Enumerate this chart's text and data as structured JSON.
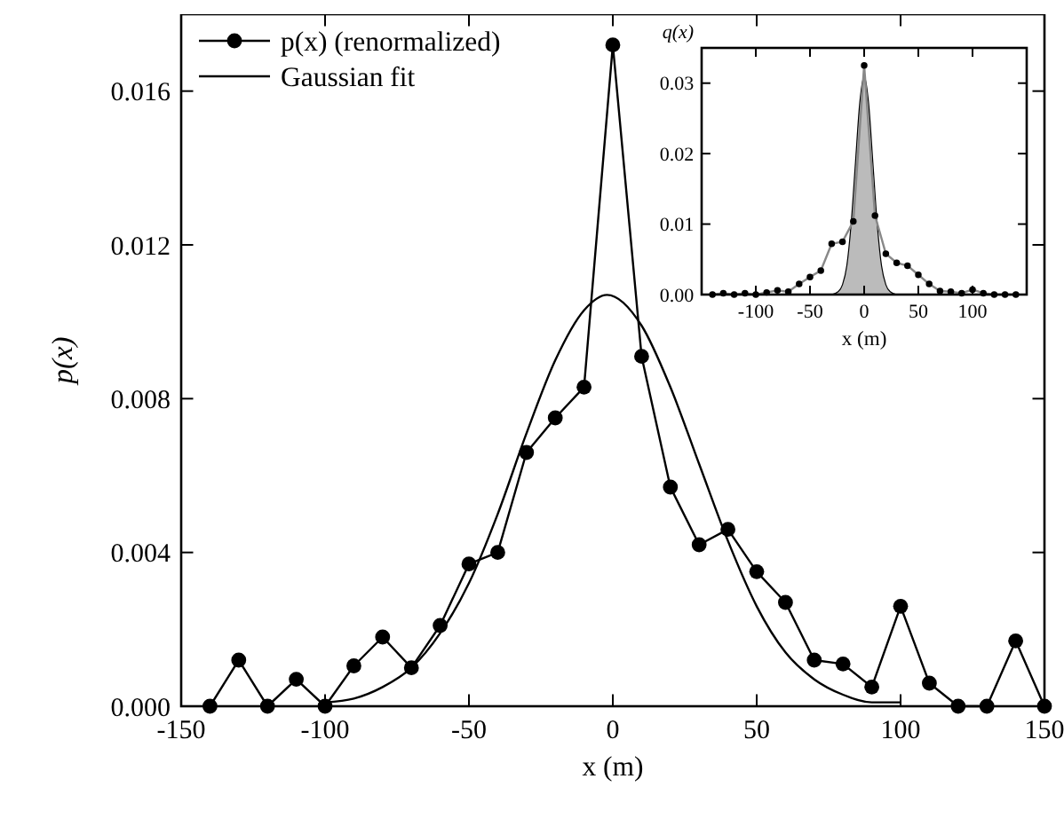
{
  "chart_data": [
    {
      "type": "line",
      "xlabel": "x (m)",
      "ylabel": "p(x)",
      "xlim": [
        -150,
        150
      ],
      "ylim": [
        0,
        0.018
      ],
      "xticks": [
        -150,
        -100,
        -50,
        0,
        50,
        100,
        150
      ],
      "yticks": [
        {
          "value": 0,
          "label": "0.000"
        },
        {
          "value": 0.004,
          "label": "0.004"
        },
        {
          "value": 0.008,
          "label": "0.008"
        },
        {
          "value": 0.012,
          "label": "0.012"
        },
        {
          "value": 0.016,
          "label": "0.016"
        }
      ],
      "legend": "top left",
      "grid": false,
      "series": [
        {
          "name": "p(x) (renormalized)",
          "color": "#000000",
          "marker": "circle",
          "x": [
            -140,
            -130,
            -120,
            -110,
            -100,
            -90,
            -80,
            -70,
            -60,
            -50,
            -40,
            -30,
            -20,
            -10,
            0,
            10,
            20,
            30,
            40,
            50,
            60,
            70,
            80,
            90,
            100,
            110,
            120,
            130,
            140,
            150
          ],
          "values": [
            0,
            0.0012,
            0,
            0.0007,
            0,
            0.00105,
            0.0018,
            0.001,
            0.0021,
            0.0037,
            0.004,
            0.0066,
            0.0075,
            0.0083,
            0.0172,
            0.0091,
            0.0057,
            0.0042,
            0.0046,
            0.0035,
            0.0027,
            0.0012,
            0.0011,
            0.0005,
            0.0026,
            0.0006,
            0,
            0,
            0.0017,
            0
          ]
        },
        {
          "name": "Gaussian fit",
          "color": "#000000",
          "marker": "none",
          "x": [
            -100,
            -90,
            -80,
            -70,
            -60,
            -50,
            -40,
            -30,
            -20,
            -10,
            -2,
            10,
            20,
            30,
            40,
            50,
            60,
            70,
            80,
            90,
            100
          ],
          "values": [
            0.0001,
            0.0002,
            0.0005,
            0.001,
            0.0019,
            0.0032,
            0.005,
            0.0071,
            0.009,
            0.0103,
            0.0107,
            0.0099,
            0.0083,
            0.0063,
            0.0043,
            0.0026,
            0.0014,
            0.0007,
            0.0003,
            0.0001,
            0.0001
          ]
        }
      ]
    },
    {
      "type": "line",
      "xlabel": "x (m)",
      "ylabel": "q(x)",
      "xlim": [
        -150,
        150
      ],
      "ylim": [
        0,
        0.035
      ],
      "xticks": [
        -100,
        -50,
        0,
        50,
        100
      ],
      "yticks": [
        {
          "value": 0,
          "label": "0.00"
        },
        {
          "value": 0.01,
          "label": "0.01"
        },
        {
          "value": 0.02,
          "label": "0.02"
        },
        {
          "value": 0.03,
          "label": "0.03"
        }
      ],
      "grid": false,
      "series": [
        {
          "type": "area",
          "color": "#bbbbbb",
          "x": [
            -30,
            -24,
            -20,
            -16,
            -12,
            -8,
            -4,
            0,
            4,
            8,
            12,
            16,
            20,
            24,
            30
          ],
          "values": [
            0,
            0.0004,
            0.0014,
            0.0041,
            0.0101,
            0.0188,
            0.0273,
            0.031,
            0.0273,
            0.0188,
            0.0101,
            0.0041,
            0.0014,
            0.0004,
            0
          ]
        },
        {
          "color": "#000000",
          "marker": "circle",
          "x": [
            -140,
            -130,
            -120,
            -110,
            -100,
            -90,
            -80,
            -70,
            -60,
            -50,
            -40,
            -30,
            -20,
            -10,
            0,
            10,
            20,
            30,
            40,
            50,
            60,
            70,
            80,
            90,
            100,
            110,
            120,
            130,
            140
          ],
          "values": [
            0,
            0.0002,
            0,
            0.0002,
            0,
            0.0003,
            0.0006,
            0.0004,
            0.0015,
            0.0025,
            0.0034,
            0.0072,
            0.0075,
            0.0104,
            0.0325,
            0.0112,
            0.0058,
            0.0045,
            0.0041,
            0.0028,
            0.0015,
            0.0005,
            0.0004,
            0.0002,
            0.0007,
            0.0002,
            0,
            0,
            0
          ]
        }
      ]
    }
  ]
}
